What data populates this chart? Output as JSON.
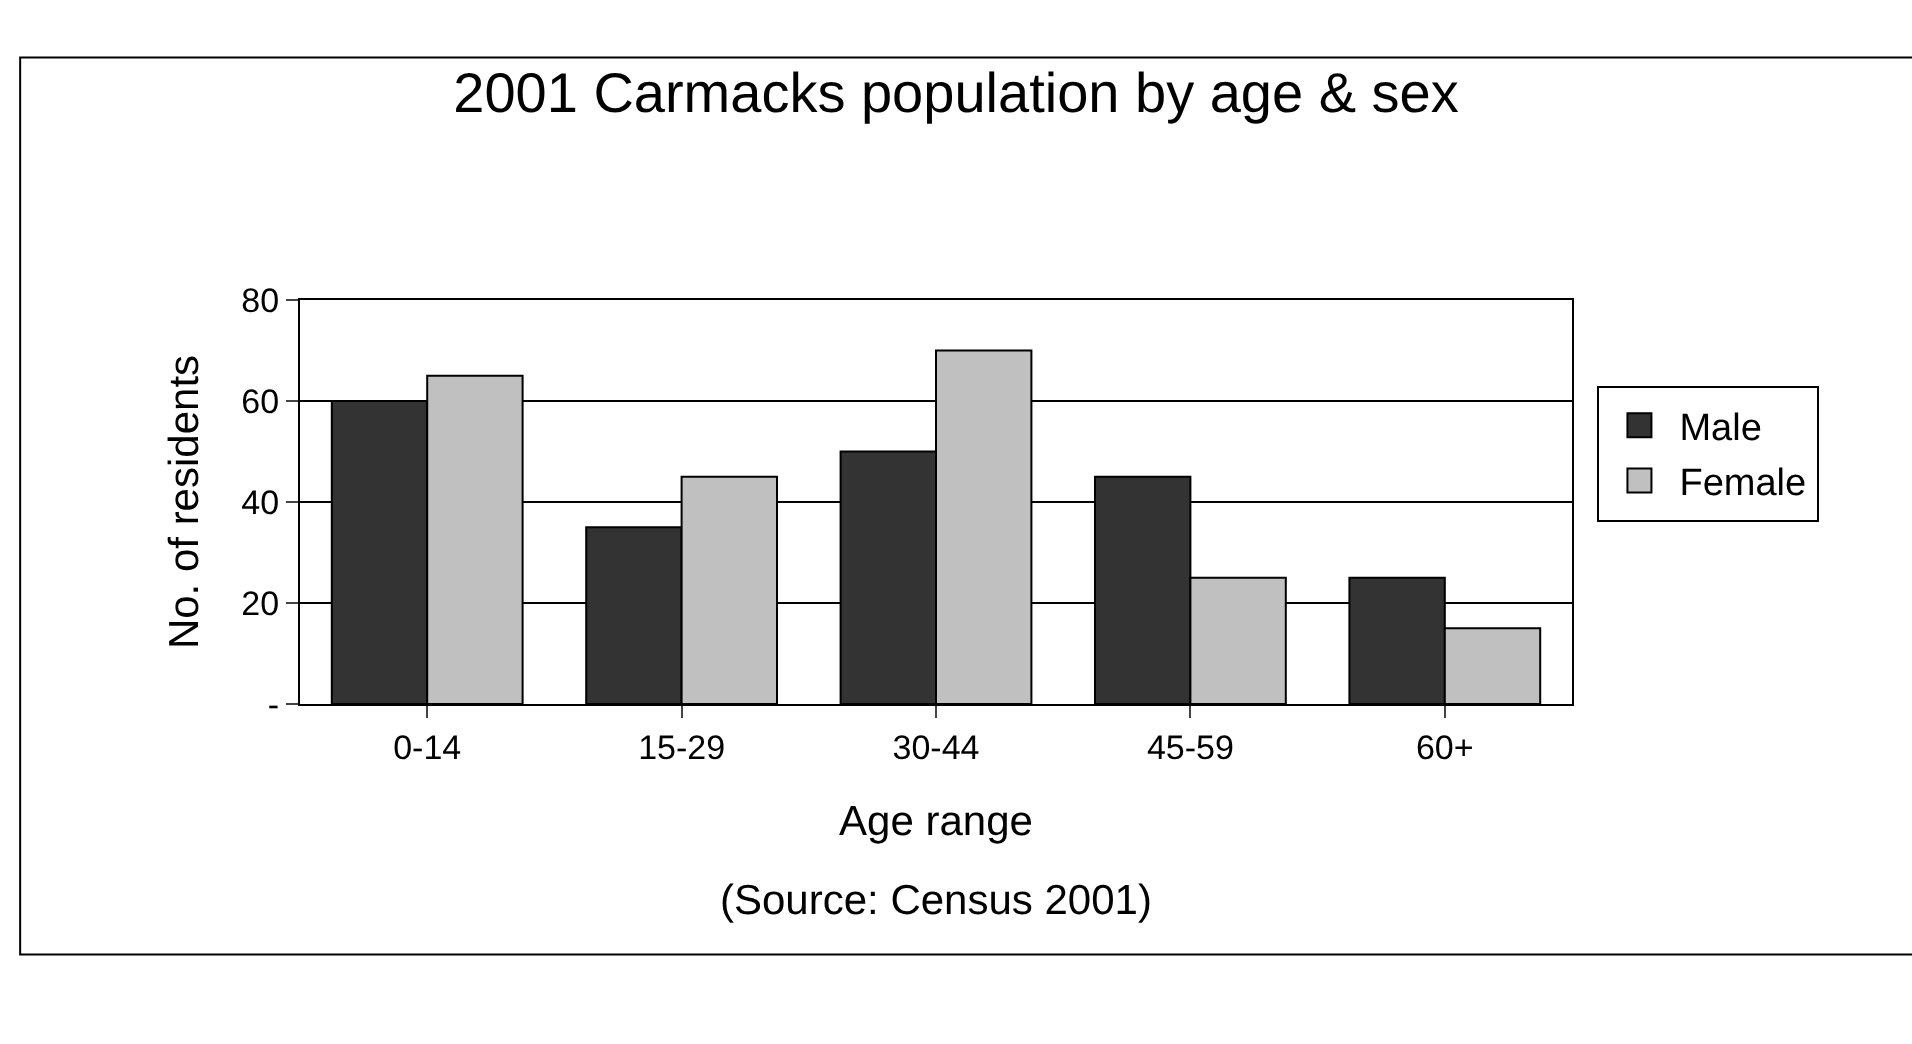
{
  "chart_data": {
    "type": "bar",
    "title": "2001 Carmacks population by age & sex",
    "xlabel": "Age range",
    "ylabel": "No. of residents",
    "categories": [
      "0-14",
      "15-29",
      "30-44",
      "45-59",
      "60+"
    ],
    "series": [
      {
        "name": "Male",
        "color": "#333333",
        "values": [
          60,
          35,
          50,
          45,
          25
        ]
      },
      {
        "name": "Female",
        "color": "#c0c0c0",
        "values": [
          65,
          45,
          70,
          25,
          15
        ]
      }
    ],
    "ylim": [
      0,
      80
    ],
    "yticks": [
      {
        "value": 0,
        "label": "-"
      },
      20,
      40,
      60,
      80
    ],
    "grid": "y",
    "legend": "right",
    "annotations": [
      "(Source: Census 2001)"
    ]
  }
}
